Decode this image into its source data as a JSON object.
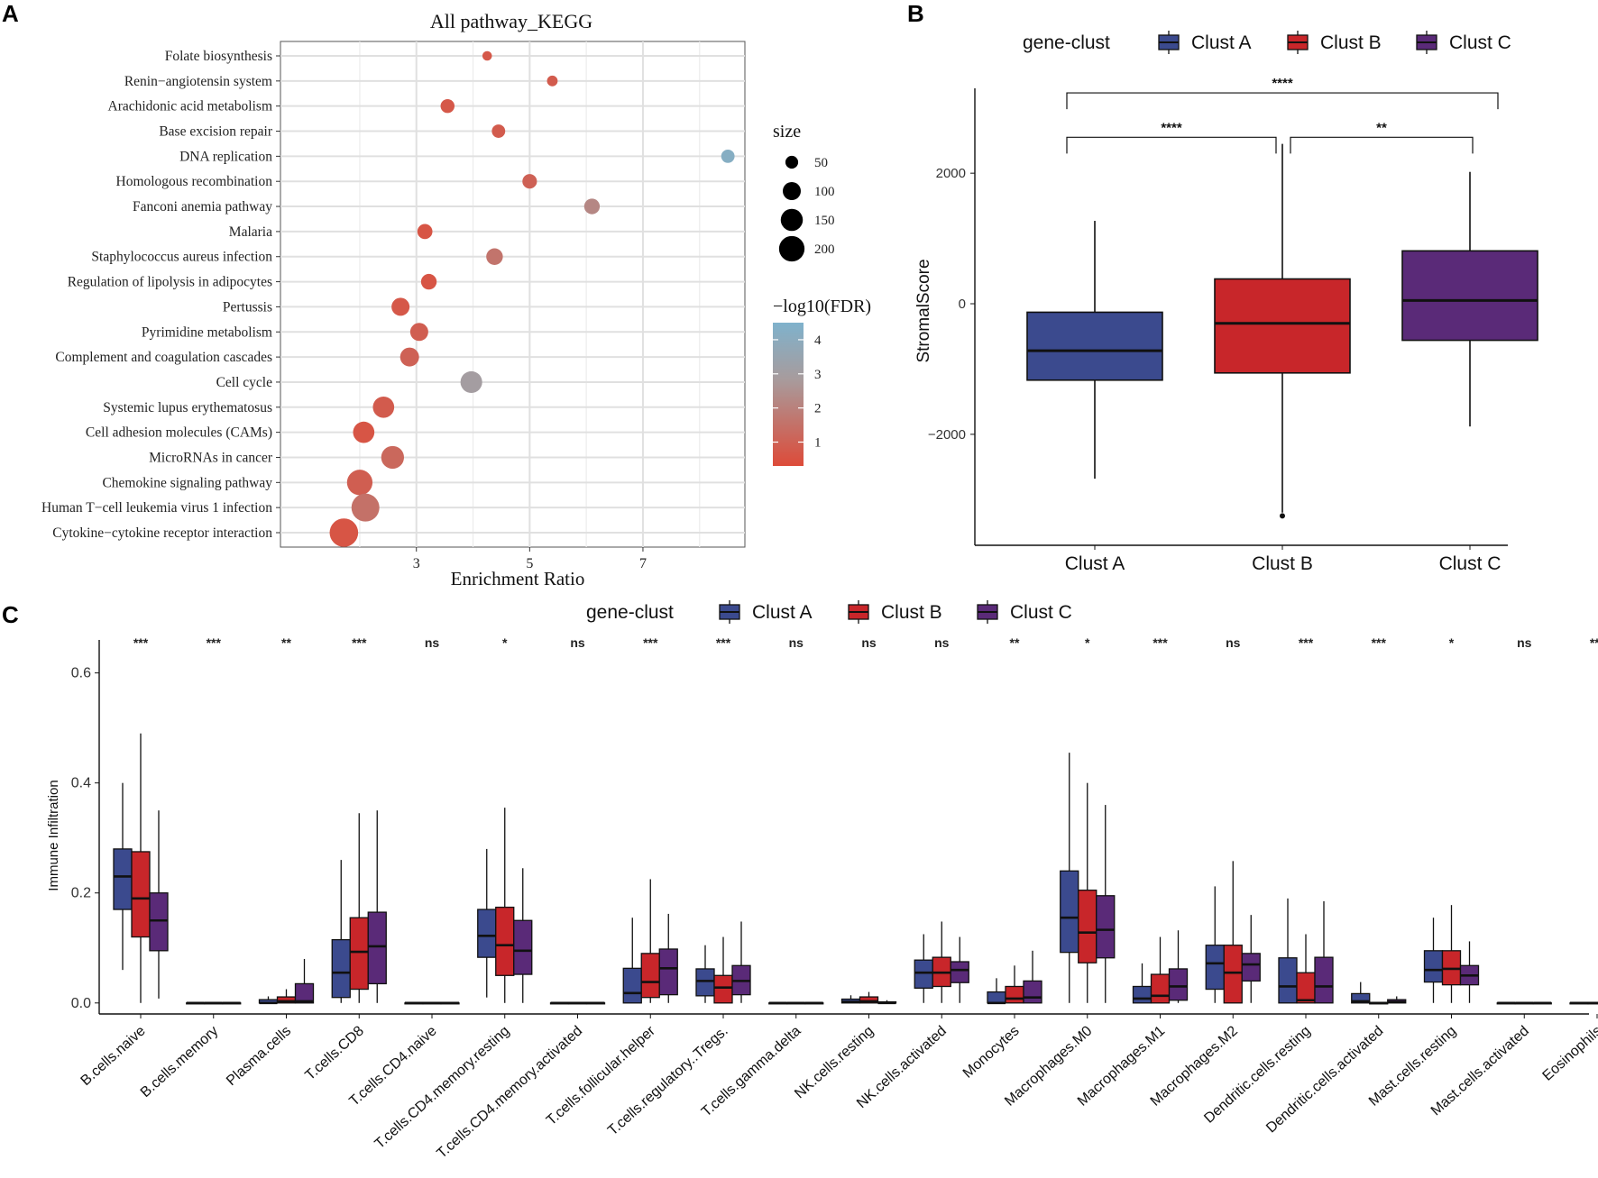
{
  "panels": {
    "A": "A",
    "B": "B",
    "C": "C"
  },
  "chart_data": [
    {
      "type": "scatter",
      "panel": "A",
      "title": "All pathway_KEGG",
      "xlabel": "Enrichment Ratio",
      "ylabel": "",
      "xlim": [
        0.6,
        8.8
      ],
      "xticks": [
        3,
        5,
        7
      ],
      "xtick_labels": [
        "3",
        "5",
        "7"
      ],
      "grid": true,
      "pathways": [
        "Folate biosynthesis",
        "Renin−angiotensin system",
        "Arachidonic acid metabolism",
        "Base excision repair",
        "DNA replication",
        "Homologous recombination",
        "Fanconi anemia pathway",
        "Malaria",
        "Staphylococcus aureus infection",
        "Regulation of lipolysis in adipocytes",
        "Pertussis",
        "Pyrimidine metabolism",
        "Complement and coagulation cascades",
        "Cell cycle",
        "Systemic lupus erythematosus",
        "Cell adhesion molecules (CAMs)",
        "MicroRNAs in cancer",
        "Chemokine signaling pathway",
        "Human T−cell leukemia virus 1 infection",
        "Cytokine−cytokine receptor interaction"
      ],
      "enrichment_ratio": [
        4.25,
        5.4,
        3.55,
        4.45,
        8.5,
        5.0,
        6.1,
        3.15,
        4.38,
        3.22,
        2.72,
        3.05,
        2.88,
        3.97,
        2.42,
        2.07,
        2.58,
        2.0,
        2.1,
        1.72
      ],
      "size": [
        28,
        35,
        60,
        55,
        55,
        65,
        75,
        70,
        85,
        75,
        100,
        100,
        110,
        145,
        140,
        140,
        160,
        200,
        240,
        250
      ],
      "neg_log10_fdr": [
        0.7,
        0.8,
        0.7,
        0.8,
        4.2,
        1.0,
        2.2,
        0.6,
        1.6,
        0.6,
        0.7,
        0.9,
        1.0,
        3.0,
        0.8,
        0.6,
        1.2,
        0.9,
        1.5,
        0.6
      ],
      "legend_size": {
        "title": "size",
        "values": [
          50,
          100,
          150,
          200
        ],
        "labels": [
          "50",
          "100",
          "150",
          "200"
        ]
      },
      "legend_color": {
        "title": "−log10(FDR)",
        "range": [
          0.3,
          4.5
        ],
        "ticks": [
          1,
          2,
          3,
          4
        ],
        "labels": [
          "1",
          "2",
          "3",
          "4"
        ],
        "low_color": "#dd4b39",
        "mid_color": "#a89b9c",
        "high_color": "#7fb2cc"
      }
    },
    {
      "type": "box",
      "panel": "B",
      "legend_title": "gene-clust",
      "legend_position": "top",
      "ylabel": "StromalScore",
      "ylim": [
        -3700,
        3300
      ],
      "yticks": [
        -2000,
        0,
        2000
      ],
      "ytick_labels": [
        "−2000",
        "0",
        "2000"
      ],
      "categories": [
        "Clust A",
        "Clust B",
        "Clust C"
      ],
      "colors": [
        "#3b4a8e",
        "#c8262a",
        "#5a2a78"
      ],
      "boxes": [
        {
          "name": "Clust A",
          "whisker_low": -2680,
          "q1": -1170,
          "median": -720,
          "q3": -130,
          "whisker_high": 1270,
          "outliers": []
        },
        {
          "name": "Clust B",
          "whisker_low": -3200,
          "q1": -1060,
          "median": -300,
          "q3": 380,
          "whisker_high": 2450,
          "outliers": [
            -3250
          ]
        },
        {
          "name": "Clust C",
          "whisker_low": -1880,
          "q1": -560,
          "median": 50,
          "q3": 810,
          "whisker_high": 2020,
          "outliers": []
        }
      ],
      "significance": [
        {
          "pair": [
            "Clust A",
            "Clust B"
          ],
          "label": "****",
          "y": 2550
        },
        {
          "pair": [
            "Clust B",
            "Clust C"
          ],
          "label": "**",
          "y": 2550
        },
        {
          "pair": [
            "Clust A",
            "Clust C"
          ],
          "label": "****",
          "y": 3230
        }
      ]
    },
    {
      "type": "box",
      "panel": "C",
      "legend_title": "gene-clust",
      "legend_position": "top",
      "ylabel": "Immune Infiltration",
      "ylim": [
        -0.02,
        0.66
      ],
      "yticks": [
        0.0,
        0.2,
        0.4,
        0.6
      ],
      "ytick_labels": [
        "0.0",
        "0.2",
        "0.4",
        "0.6"
      ],
      "series_names": [
        "Clust A",
        "Clust B",
        "Clust C"
      ],
      "colors": [
        "#3b4a8e",
        "#c8262a",
        "#5a2a78"
      ],
      "categories": [
        "B.cells.naive",
        "B.cells.memory",
        "Plasma.cells",
        "T.cells.CD8",
        "T.cells.CD4.naive",
        "T.cells.CD4.memory.resting",
        "T.cells.CD4.memory.activated",
        "T.cells.follicular.helper",
        "T.cells.regulatory..Tregs.",
        "T.cells.gamma.delta",
        "NK.cells.resting",
        "NK.cells.activated",
        "Monocytes",
        "Macrophages.M0",
        "Macrophages.M1",
        "Macrophages.M2",
        "Dendritic.cells.resting",
        "Dendritic.cells.activated",
        "Mast.cells.resting",
        "Mast.cells.activated",
        "Eosinophils"
      ],
      "significance": [
        "***",
        "***",
        "**",
        "***",
        "ns",
        "*",
        "ns",
        "***",
        "***",
        "ns",
        "ns",
        "ns",
        "**",
        "*",
        "***",
        "ns",
        "***",
        "***",
        "*",
        "ns",
        "***"
      ],
      "boxes": [
        [
          {
            "wl": 0.06,
            "q1": 0.17,
            "med": 0.23,
            "q3": 0.28,
            "wh": 0.4
          },
          {
            "wl": 0.0,
            "q1": 0.12,
            "med": 0.19,
            "q3": 0.275,
            "wh": 0.49
          },
          {
            "wl": 0.008,
            "q1": 0.095,
            "med": 0.15,
            "q3": 0.2,
            "wh": 0.35
          }
        ],
        [
          {
            "wl": 0.0,
            "q1": 0.0,
            "med": 0.0,
            "q3": 0.0,
            "wh": 0.0
          },
          {
            "wl": 0.0,
            "q1": 0.0,
            "med": 0.0,
            "q3": 0.0,
            "wh": 0.0
          },
          {
            "wl": 0.0,
            "q1": 0.0,
            "med": 0.0,
            "q3": 0.0,
            "wh": 0.0
          }
        ],
        [
          {
            "wl": 0.0,
            "q1": 0.0,
            "med": 0.0,
            "q3": 0.006,
            "wh": 0.012
          },
          {
            "wl": 0.0,
            "q1": 0.0,
            "med": 0.003,
            "q3": 0.011,
            "wh": 0.025
          },
          {
            "wl": 0.0,
            "q1": 0.0,
            "med": 0.003,
            "q3": 0.035,
            "wh": 0.08
          }
        ],
        [
          {
            "wl": 0.0,
            "q1": 0.01,
            "med": 0.055,
            "q3": 0.115,
            "wh": 0.26
          },
          {
            "wl": 0.0,
            "q1": 0.025,
            "med": 0.093,
            "q3": 0.155,
            "wh": 0.345
          },
          {
            "wl": 0.0,
            "q1": 0.035,
            "med": 0.103,
            "q3": 0.165,
            "wh": 0.35
          }
        ],
        [
          {
            "wl": 0.0,
            "q1": 0.0,
            "med": 0.0,
            "q3": 0.0,
            "wh": 0.0
          },
          {
            "wl": 0.0,
            "q1": 0.0,
            "med": 0.0,
            "q3": 0.0,
            "wh": 0.0
          },
          {
            "wl": 0.0,
            "q1": 0.0,
            "med": 0.0,
            "q3": 0.0,
            "wh": 0.0
          }
        ],
        [
          {
            "wl": 0.01,
            "q1": 0.083,
            "med": 0.122,
            "q3": 0.17,
            "wh": 0.28
          },
          {
            "wl": 0.0,
            "q1": 0.05,
            "med": 0.105,
            "q3": 0.174,
            "wh": 0.355
          },
          {
            "wl": 0.0,
            "q1": 0.052,
            "med": 0.095,
            "q3": 0.15,
            "wh": 0.245
          }
        ],
        [
          {
            "wl": 0.0,
            "q1": 0.0,
            "med": 0.0,
            "q3": 0.0,
            "wh": 0.0
          },
          {
            "wl": 0.0,
            "q1": 0.0,
            "med": 0.0,
            "q3": 0.0,
            "wh": 0.0
          },
          {
            "wl": 0.0,
            "q1": 0.0,
            "med": 0.0,
            "q3": 0.0,
            "wh": 0.0
          }
        ],
        [
          {
            "wl": 0.0,
            "q1": 0.0,
            "med": 0.018,
            "q3": 0.063,
            "wh": 0.155
          },
          {
            "wl": 0.0,
            "q1": 0.01,
            "med": 0.038,
            "q3": 0.09,
            "wh": 0.225
          },
          {
            "wl": 0.0,
            "q1": 0.015,
            "med": 0.063,
            "q3": 0.098,
            "wh": 0.162
          }
        ],
        [
          {
            "wl": 0.0,
            "q1": 0.013,
            "med": 0.04,
            "q3": 0.062,
            "wh": 0.105
          },
          {
            "wl": 0.0,
            "q1": 0.0,
            "med": 0.028,
            "q3": 0.05,
            "wh": 0.12
          },
          {
            "wl": 0.0,
            "q1": 0.015,
            "med": 0.04,
            "q3": 0.068,
            "wh": 0.148
          }
        ],
        [
          {
            "wl": 0.0,
            "q1": 0.0,
            "med": 0.0,
            "q3": 0.0,
            "wh": 0.0
          },
          {
            "wl": 0.0,
            "q1": 0.0,
            "med": 0.0,
            "q3": 0.0,
            "wh": 0.0
          },
          {
            "wl": 0.0,
            "q1": 0.0,
            "med": 0.0,
            "q3": 0.0,
            "wh": 0.0
          }
        ],
        [
          {
            "wl": 0.0,
            "q1": 0.0,
            "med": 0.002,
            "q3": 0.007,
            "wh": 0.014
          },
          {
            "wl": 0.0,
            "q1": 0.0,
            "med": 0.003,
            "q3": 0.011,
            "wh": 0.02
          },
          {
            "wl": 0.0,
            "q1": 0.0,
            "med": 0.0,
            "q3": 0.002,
            "wh": 0.005
          }
        ],
        [
          {
            "wl": 0.0,
            "q1": 0.027,
            "med": 0.055,
            "q3": 0.078,
            "wh": 0.125
          },
          {
            "wl": 0.0,
            "q1": 0.03,
            "med": 0.055,
            "q3": 0.083,
            "wh": 0.148
          },
          {
            "wl": 0.0,
            "q1": 0.037,
            "med": 0.06,
            "q3": 0.075,
            "wh": 0.12
          }
        ],
        [
          {
            "wl": 0.0,
            "q1": 0.0,
            "med": 0.0,
            "q3": 0.02,
            "wh": 0.045
          },
          {
            "wl": 0.0,
            "q1": 0.0,
            "med": 0.008,
            "q3": 0.03,
            "wh": 0.068
          },
          {
            "wl": 0.0,
            "q1": 0.0,
            "med": 0.01,
            "q3": 0.04,
            "wh": 0.095
          }
        ],
        [
          {
            "wl": 0.0,
            "q1": 0.092,
            "med": 0.155,
            "q3": 0.24,
            "wh": 0.455
          },
          {
            "wl": 0.0,
            "q1": 0.073,
            "med": 0.128,
            "q3": 0.205,
            "wh": 0.4
          },
          {
            "wl": 0.0,
            "q1": 0.082,
            "med": 0.133,
            "q3": 0.195,
            "wh": 0.36
          }
        ],
        [
          {
            "wl": 0.0,
            "q1": 0.0,
            "med": 0.008,
            "q3": 0.03,
            "wh": 0.072
          },
          {
            "wl": 0.0,
            "q1": 0.0,
            "med": 0.013,
            "q3": 0.052,
            "wh": 0.12
          },
          {
            "wl": 0.0,
            "q1": 0.005,
            "med": 0.03,
            "q3": 0.062,
            "wh": 0.132
          }
        ],
        [
          {
            "wl": 0.0,
            "q1": 0.025,
            "med": 0.072,
            "q3": 0.105,
            "wh": 0.212
          },
          {
            "wl": 0.0,
            "q1": 0.0,
            "med": 0.055,
            "q3": 0.105,
            "wh": 0.258
          },
          {
            "wl": 0.0,
            "q1": 0.04,
            "med": 0.07,
            "q3": 0.09,
            "wh": 0.16
          }
        ],
        [
          {
            "wl": 0.0,
            "q1": 0.0,
            "med": 0.03,
            "q3": 0.082,
            "wh": 0.19
          },
          {
            "wl": 0.0,
            "q1": 0.0,
            "med": 0.005,
            "q3": 0.055,
            "wh": 0.125
          },
          {
            "wl": 0.0,
            "q1": 0.0,
            "med": 0.03,
            "q3": 0.083,
            "wh": 0.185
          }
        ],
        [
          {
            "wl": 0.0,
            "q1": 0.0,
            "med": 0.003,
            "q3": 0.017,
            "wh": 0.038
          },
          {
            "wl": 0.0,
            "q1": 0.0,
            "med": 0.0,
            "q3": 0.0,
            "wh": 0.0
          },
          {
            "wl": 0.0,
            "q1": 0.0,
            "med": 0.002,
            "q3": 0.006,
            "wh": 0.012
          }
        ],
        [
          {
            "wl": 0.0,
            "q1": 0.038,
            "med": 0.06,
            "q3": 0.095,
            "wh": 0.155
          },
          {
            "wl": 0.0,
            "q1": 0.033,
            "med": 0.062,
            "q3": 0.095,
            "wh": 0.178
          },
          {
            "wl": 0.0,
            "q1": 0.033,
            "med": 0.05,
            "q3": 0.068,
            "wh": 0.112
          }
        ],
        [
          {
            "wl": 0.0,
            "q1": 0.0,
            "med": 0.0,
            "q3": 0.0,
            "wh": 0.0
          },
          {
            "wl": 0.0,
            "q1": 0.0,
            "med": 0.0,
            "q3": 0.0,
            "wh": 0.0
          },
          {
            "wl": 0.0,
            "q1": 0.0,
            "med": 0.0,
            "q3": 0.0,
            "wh": 0.0
          }
        ],
        [
          {
            "wl": 0.0,
            "q1": 0.0,
            "med": 0.0,
            "q3": 0.0,
            "wh": 0.0
          },
          {
            "wl": 0.0,
            "q1": 0.0,
            "med": 0.0,
            "q3": 0.0,
            "wh": 0.0
          },
          {
            "wl": 0.0,
            "q1": 0.0,
            "med": 0.0,
            "q3": 0.0,
            "wh": 0.0
          }
        ]
      ]
    }
  ]
}
